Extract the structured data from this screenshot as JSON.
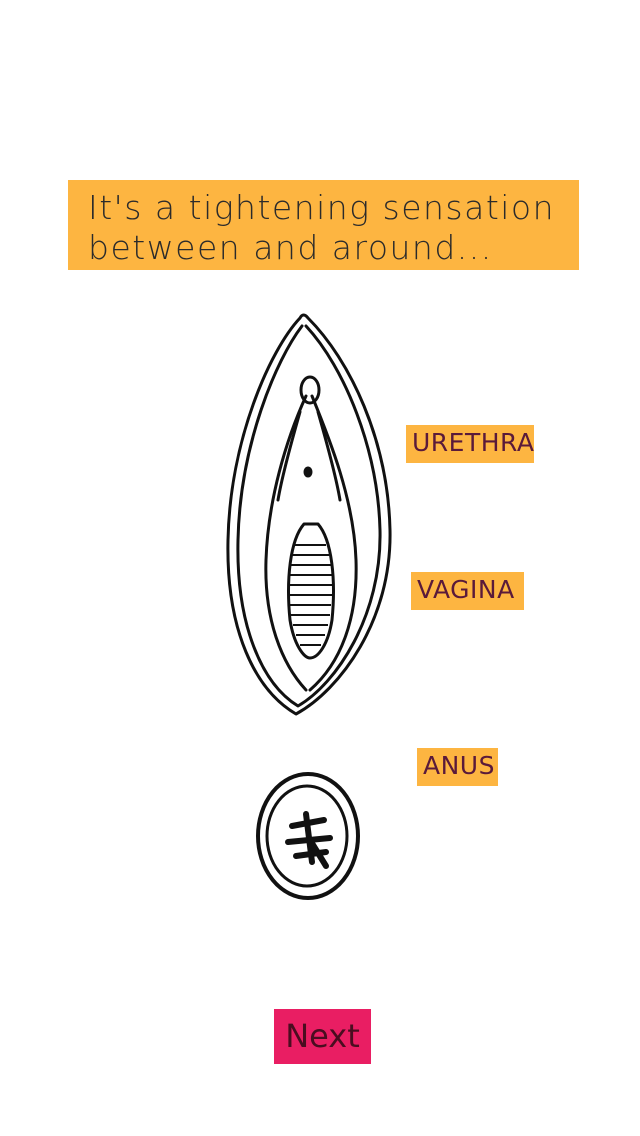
{
  "caption": {
    "line1": "It's a tightening sensation",
    "line2": "between and around..."
  },
  "labels": {
    "urethra": "URETHRA",
    "vagina": "VAGINA",
    "anus": "ANUS"
  },
  "next_button": {
    "label": "Next"
  },
  "colors": {
    "label_background": "#FDB541",
    "next_button_background": "#E91E63",
    "page_background": "#FFFFFF"
  }
}
